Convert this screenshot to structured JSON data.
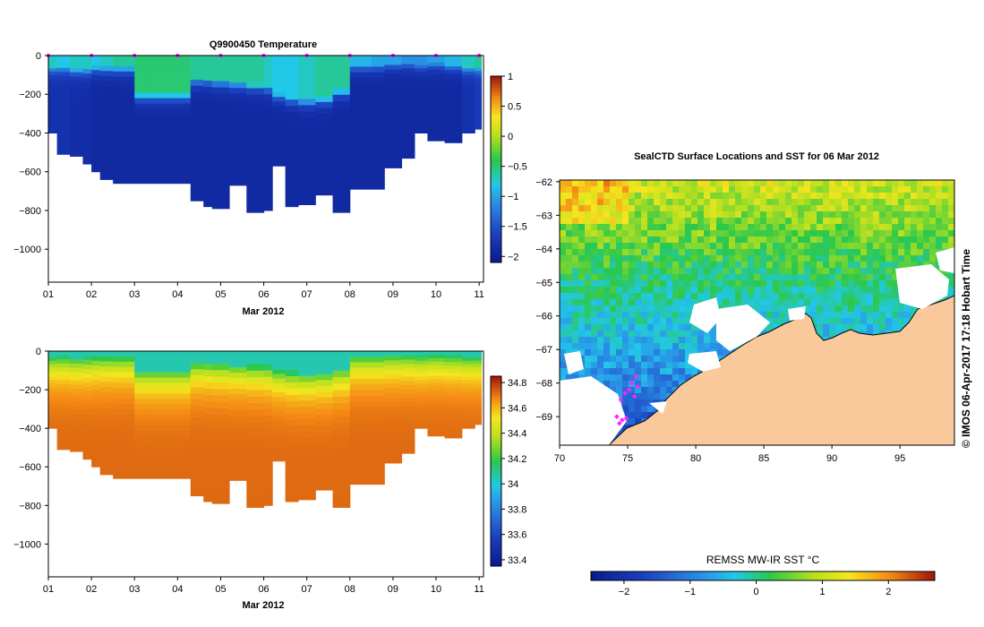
{
  "chart_data": [
    {
      "type": "heatmap",
      "title": "Q9900450  Temperature",
      "xlabel": "Mar 2012",
      "x_ticks": [
        "01",
        "02",
        "03",
        "04",
        "05",
        "06",
        "07",
        "08",
        "09",
        "10",
        "11"
      ],
      "y_ticks": [
        0,
        -200,
        -400,
        -600,
        -800,
        -1000
      ],
      "ylim": [
        -1170,
        0
      ],
      "colorbar": {
        "min": -2.1,
        "max": 1.0,
        "ticks": [
          1,
          0.5,
          0,
          -0.5,
          -1,
          -1.5,
          -2
        ]
      },
      "profiles": [
        {
          "day": 1.0,
          "depth": 400,
          "surface": -0.7,
          "mld": 60,
          "deep": -1.8
        },
        {
          "day": 1.2,
          "depth": 510,
          "surface": -0.8,
          "mld": 60,
          "deep": -1.8
        },
        {
          "day": 1.5,
          "depth": 520,
          "surface": -0.7,
          "mld": 70,
          "deep": -1.85
        },
        {
          "day": 1.8,
          "depth": 560,
          "surface": -0.7,
          "mld": 70,
          "deep": -1.85
        },
        {
          "day": 2.0,
          "depth": 600,
          "surface": -0.8,
          "mld": 60,
          "deep": -1.9
        },
        {
          "day": 2.2,
          "depth": 640,
          "surface": -0.7,
          "mld": 60,
          "deep": -1.9
        },
        {
          "day": 2.5,
          "depth": 660,
          "surface": -0.6,
          "mld": 60,
          "deep": -1.9
        },
        {
          "day": 3.0,
          "depth": 660,
          "surface": -0.5,
          "mld": 200,
          "deep": -1.9
        },
        {
          "day": 3.4,
          "depth": 660,
          "surface": -0.5,
          "mld": 200,
          "deep": -1.9
        },
        {
          "day": 4.3,
          "depth": 750,
          "surface": -0.6,
          "mld": 120,
          "deep": -1.9
        },
        {
          "day": 4.6,
          "depth": 780,
          "surface": -0.6,
          "mld": 120,
          "deep": -1.9
        },
        {
          "day": 4.8,
          "depth": 790,
          "surface": -0.6,
          "mld": 130,
          "deep": -1.9
        },
        {
          "day": 5.2,
          "depth": 670,
          "surface": -0.6,
          "mld": 140,
          "deep": -1.9
        },
        {
          "day": 5.6,
          "depth": 810,
          "surface": -0.6,
          "mld": 150,
          "deep": -1.9
        },
        {
          "day": 6.0,
          "depth": 800,
          "surface": -0.7,
          "mld": 160,
          "deep": -1.9
        },
        {
          "day": 6.2,
          "depth": 570,
          "surface": -0.8,
          "mld": 200,
          "deep": -1.9
        },
        {
          "day": 6.5,
          "depth": 780,
          "surface": -0.8,
          "mld": 220,
          "deep": -1.9
        },
        {
          "day": 6.8,
          "depth": 770,
          "surface": -0.7,
          "mld": 230,
          "deep": -1.9
        },
        {
          "day": 7.2,
          "depth": 720,
          "surface": -0.6,
          "mld": 220,
          "deep": -1.9
        },
        {
          "day": 7.6,
          "depth": 810,
          "surface": -0.6,
          "mld": 180,
          "deep": -1.9
        },
        {
          "day": 8.0,
          "depth": 690,
          "surface": -0.9,
          "mld": 50,
          "deep": -1.9
        },
        {
          "day": 8.5,
          "depth": 690,
          "surface": -1.0,
          "mld": 50,
          "deep": -1.9
        },
        {
          "day": 8.8,
          "depth": 580,
          "surface": -1.0,
          "mld": 40,
          "deep": -1.9
        },
        {
          "day": 9.2,
          "depth": 530,
          "surface": -1.1,
          "mld": 40,
          "deep": -1.9
        },
        {
          "day": 9.5,
          "depth": 400,
          "surface": -1.1,
          "mld": 50,
          "deep": -1.9
        },
        {
          "day": 9.8,
          "depth": 440,
          "surface": -1.0,
          "mld": 40,
          "deep": -1.9
        },
        {
          "day": 10.2,
          "depth": 450,
          "surface": -0.9,
          "mld": 50,
          "deep": -1.9
        },
        {
          "day": 10.6,
          "depth": 400,
          "surface": -0.7,
          "mld": 60,
          "deep": -1.8
        },
        {
          "day": 10.9,
          "depth": 380,
          "surface": -0.6,
          "mld": 60,
          "deep": -1.7
        }
      ],
      "surface_markers": [
        1.0,
        2.0,
        3.0,
        4.0,
        5.0,
        6.0,
        7.0,
        8.0,
        9.0,
        10.0,
        11.0
      ]
    },
    {
      "type": "heatmap",
      "title": "",
      "xlabel": "Mar 2012",
      "x_ticks": [
        "01",
        "02",
        "03",
        "04",
        "05",
        "06",
        "07",
        "08",
        "09",
        "10",
        "11"
      ],
      "y_ticks": [
        0,
        -200,
        -400,
        -600,
        -800,
        -1000
      ],
      "ylim": [
        -1170,
        0
      ],
      "colorbar": {
        "min": 33.35,
        "max": 34.85,
        "ticks": [
          34.8,
          34.6,
          34.4,
          34.2,
          34,
          33.8,
          33.6,
          33.4
        ]
      }
    },
    {
      "type": "heatmap",
      "title": "SealCTD Surface Locations and SST for 06 Mar 2012",
      "x_ticks": [
        70,
        75,
        80,
        85,
        90,
        95
      ],
      "y_ticks": [
        -62,
        -63,
        -64,
        -65,
        -66,
        -67,
        -68,
        -69
      ],
      "xlim": [
        70,
        99
      ],
      "ylim": [
        -69.85,
        -61.95
      ],
      "colorbar": {
        "label": "REMSS MW-IR SST °C",
        "min": -2.5,
        "max": 2.7,
        "ticks": [
          -2,
          -1,
          0,
          1,
          2
        ]
      },
      "seal_locations": [
        {
          "lon": 75.6,
          "lat": -67.8
        },
        {
          "lon": 75.3,
          "lat": -68.0
        },
        {
          "lon": 75.7,
          "lat": -68.1
        },
        {
          "lon": 75.1,
          "lat": -68.2
        },
        {
          "lon": 74.8,
          "lat": -68.3
        },
        {
          "lon": 75.5,
          "lat": -68.4
        },
        {
          "lon": 74.5,
          "lat": -68.5
        },
        {
          "lon": 74.2,
          "lat": -69.0
        },
        {
          "lon": 74.6,
          "lat": -69.1
        },
        {
          "lon": 74.9,
          "lat": -69.05
        },
        {
          "lon": 74.4,
          "lat": -69.2
        }
      ]
    }
  ],
  "credit": "© IMOS 06-Apr-2017 17:18 Hobart Time"
}
